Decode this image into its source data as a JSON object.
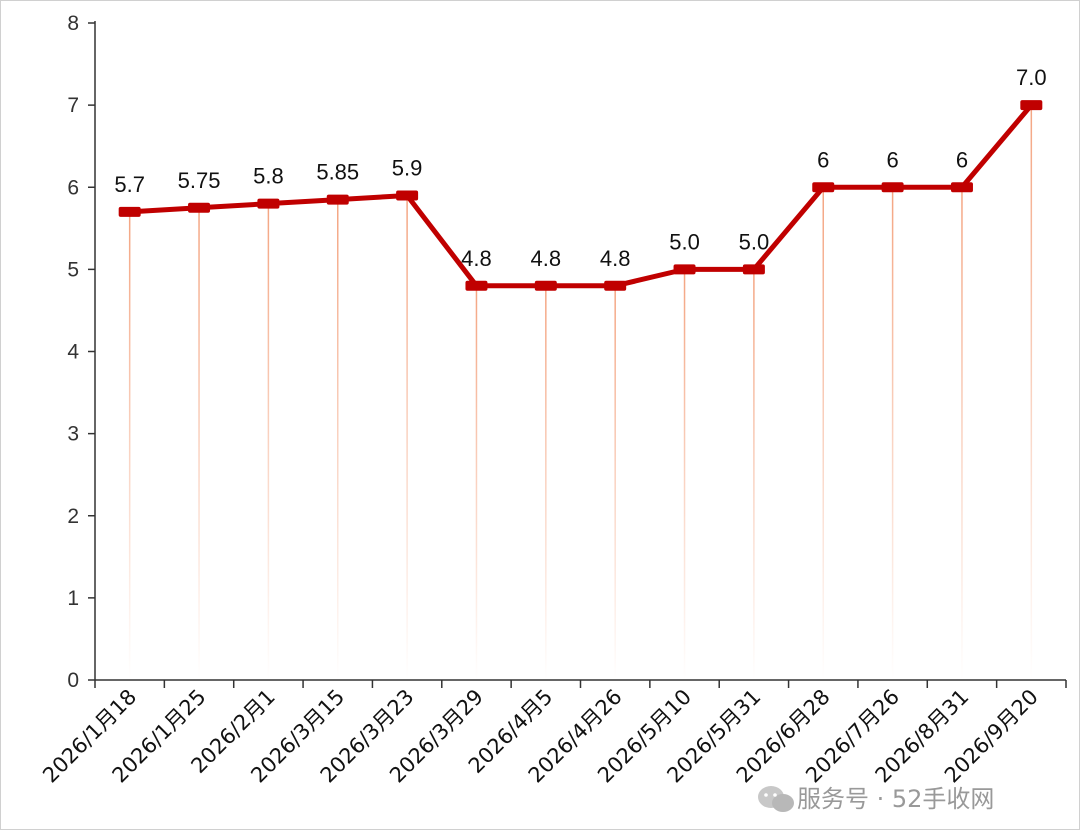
{
  "chart_data": {
    "type": "line",
    "categories": [
      "2026/1月18",
      "2026/1月25",
      "2026/2月1",
      "2026/3月15",
      "2026/3月23",
      "2026/3月29",
      "2026/4月5",
      "2026/4月26",
      "2026/5月10",
      "2026/5月31",
      "2026/6月28",
      "2026/7月26",
      "2026/8月31",
      "2026/9月20"
    ],
    "values": [
      5.7,
      5.75,
      5.8,
      5.85,
      5.9,
      4.8,
      4.8,
      4.8,
      5.0,
      5.0,
      6,
      6,
      6,
      7.0
    ],
    "data_labels": [
      "5.7",
      "5.75",
      "5.8",
      "5.85",
      "5.9",
      "4.8",
      "4.8",
      "4.8",
      "5.0",
      "5.0",
      "6",
      "6",
      "6",
      "7.0"
    ],
    "y_ticks": [
      "0",
      "1",
      "2",
      "3",
      "4",
      "5",
      "6",
      "7",
      "8"
    ],
    "ylim": [
      0,
      8
    ],
    "title": "",
    "xlabel": "",
    "ylabel": "",
    "line_color": "#c00000",
    "drop_line_color": "#f4a582",
    "grid": false
  },
  "watermark": {
    "icon": "wechat-icon",
    "text": "服务号 · 52手收网"
  }
}
